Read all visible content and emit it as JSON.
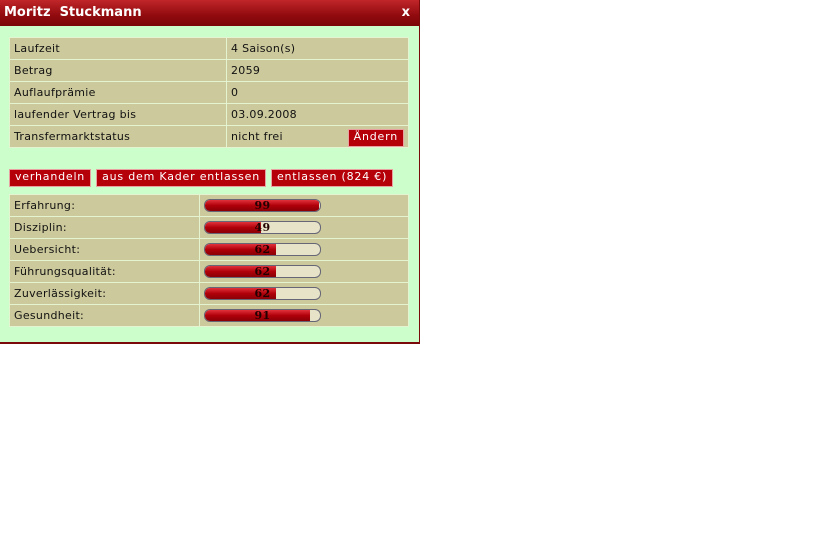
{
  "title": "Moritz  Stuckmann",
  "close_label": "x",
  "contract": [
    {
      "label": "Laufzeit",
      "value": "4 Saison(s)"
    },
    {
      "label": "Betrag",
      "value": "2059"
    },
    {
      "label": "Auflaufprämie",
      "value": "0"
    },
    {
      "label": "laufender Vertrag bis",
      "value": "03.09.2008"
    },
    {
      "label": "Transfermarktstatus",
      "value": "nicht frei",
      "button": "Ändern"
    }
  ],
  "actions": [
    "verhandeln",
    "aus dem Kader entlassen",
    "entlassen (824 €)"
  ],
  "attributes": [
    {
      "label": "Erfahrung:",
      "value": 99
    },
    {
      "label": "Disziplin:",
      "value": 49
    },
    {
      "label": "Uebersicht:",
      "value": 62
    },
    {
      "label": "Führungsqualität:",
      "value": 62
    },
    {
      "label": "Zuverlässigkeit:",
      "value": 62
    },
    {
      "label": "Gesundheit:",
      "value": 91
    }
  ],
  "colors": {
    "accent": "#b5000a",
    "background": "#ccfecc",
    "table": "#ccc99c"
  }
}
